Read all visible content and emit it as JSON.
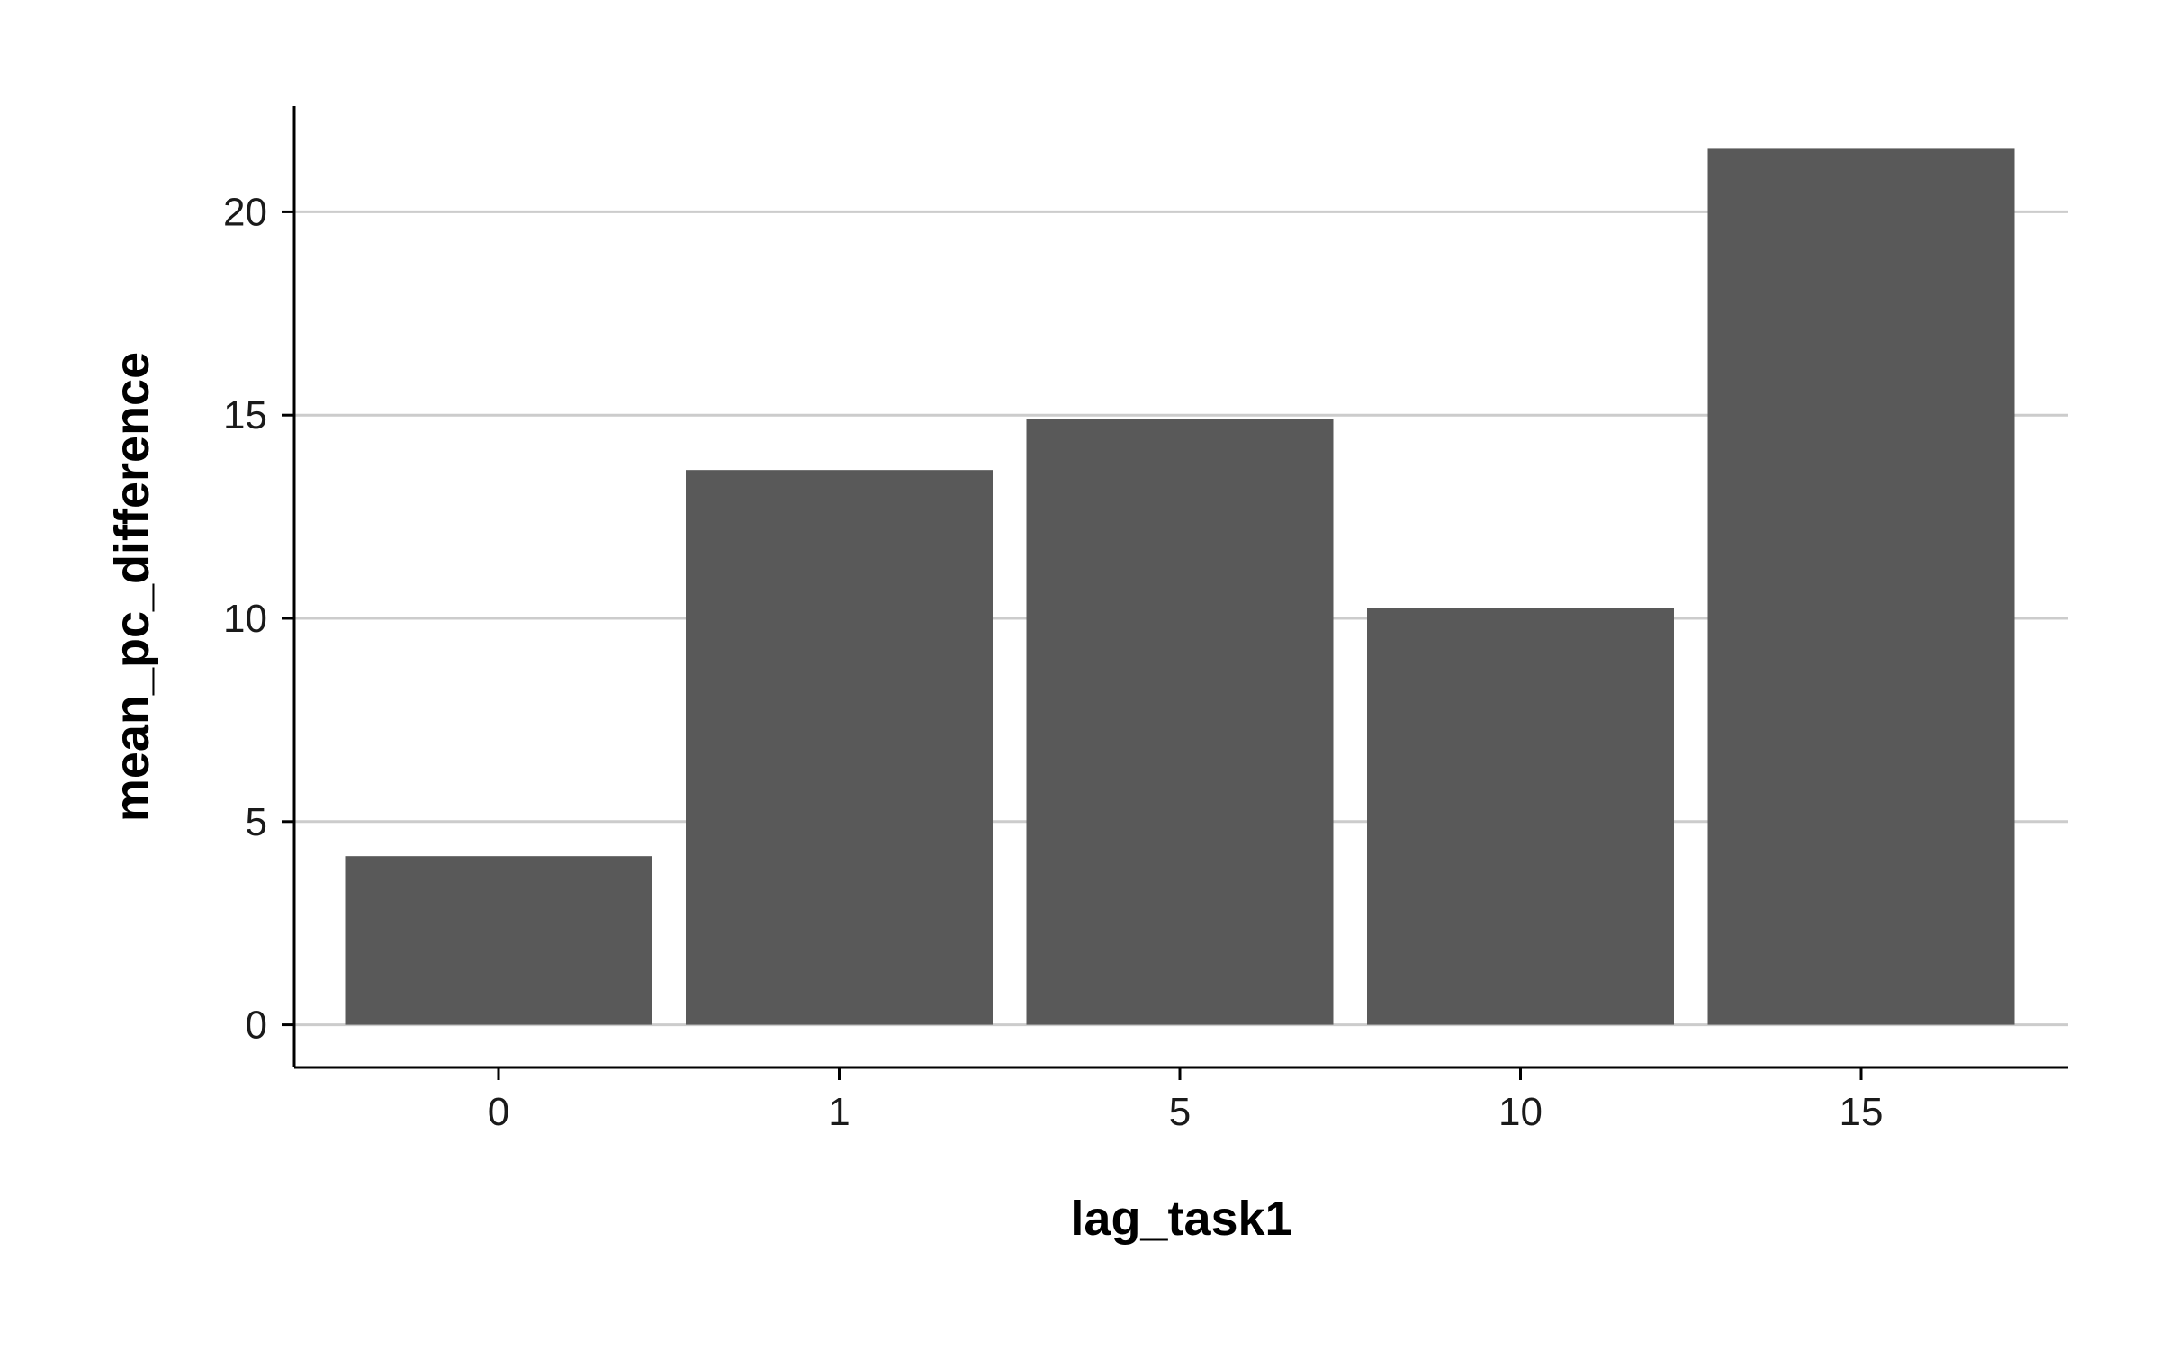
{
  "chart_data": {
    "type": "bar",
    "categories": [
      "0",
      "1",
      "5",
      "10",
      "15"
    ],
    "values": [
      4.15,
      13.65,
      14.9,
      10.25,
      21.55
    ],
    "xlabel": "lag_task1",
    "ylabel": "mean_pc_difference",
    "ylim": [
      -1.05,
      22.6
    ],
    "yticks": [
      0,
      5,
      10,
      15,
      20
    ],
    "grid": "horizontal",
    "bar_color": "#595959",
    "grid_color": "#cccccc",
    "legend": "none"
  }
}
